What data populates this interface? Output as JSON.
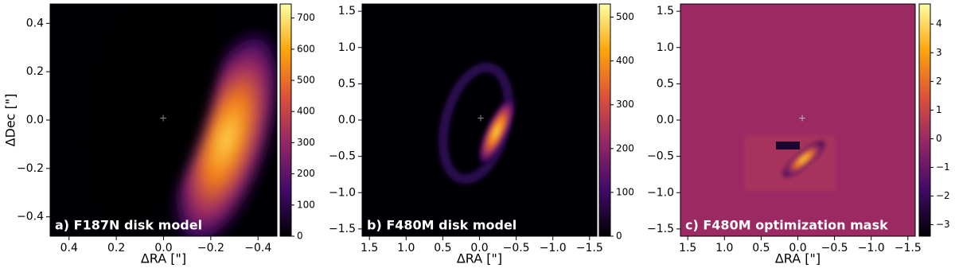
{
  "chart_data": [
    {
      "type": "image",
      "title": "a) F187N disk model",
      "xlabel": "ΔRA [\"]",
      "ylabel": "ΔDec [\"]",
      "colormap": "inferno",
      "xlim": [
        0.48,
        -0.48
      ],
      "xticks": [
        0.4,
        0.2,
        {
          "value": 0,
          "label": "0.0"
        },
        {
          "value": -0.2,
          "label": "−0.2"
        },
        {
          "value": -0.4,
          "label": "−0.4"
        }
      ],
      "ylim": [
        -0.48,
        0.48
      ],
      "yticks": [
        {
          "value": -0.4,
          "label": "−0.4"
        },
        {
          "value": -0.2,
          "label": "−0.2"
        },
        {
          "value": 0,
          "label": "0.0"
        },
        0.2,
        0.4
      ],
      "clim": [
        0,
        745
      ],
      "cticks": [
        0,
        100,
        200,
        300,
        400,
        500,
        600,
        700
      ]
    },
    {
      "type": "image",
      "title": "b) F480M disk model",
      "xlabel": "ΔRA [\"]",
      "colormap": "inferno",
      "xlim": [
        1.6,
        -1.6
      ],
      "xticks": [
        1.5,
        {
          "value": 1,
          "label": "1.0"
        },
        0.5,
        {
          "value": 0,
          "label": "0.0"
        },
        {
          "value": -0.5,
          "label": "−0.5"
        },
        {
          "value": -1,
          "label": "−1.0"
        },
        {
          "value": -1.5,
          "label": "−1.5"
        }
      ],
      "ylim": [
        -1.6,
        1.6
      ],
      "yticks": [
        {
          "value": -1.5,
          "label": "−1.5"
        },
        {
          "value": -1,
          "label": "−1.0"
        },
        {
          "value": -0.5,
          "label": "−0.5"
        },
        {
          "value": 0,
          "label": "0.0"
        },
        0.5,
        {
          "value": 1,
          "label": "1.0"
        },
        1.5
      ],
      "clim": [
        0,
        530
      ],
      "cticks": [
        0,
        100,
        200,
        300,
        400,
        500
      ]
    },
    {
      "type": "image",
      "title": "c) F480M optimization mask",
      "xlabel": "ΔRA [\"]",
      "colormap": "inferno",
      "xlim": [
        1.6,
        -1.6
      ],
      "xticks": [
        1.5,
        {
          "value": 1,
          "label": "1.0"
        },
        0.5,
        {
          "value": 0,
          "label": "0.0"
        },
        {
          "value": -0.5,
          "label": "−0.5"
        },
        {
          "value": -1,
          "label": "−1.0"
        },
        {
          "value": -1.5,
          "label": "−1.5"
        }
      ],
      "ylim": [
        -1.6,
        1.6
      ],
      "yticks": [
        {
          "value": -1.5,
          "label": "−1.5"
        },
        {
          "value": -1,
          "label": "−1.0"
        },
        {
          "value": -0.5,
          "label": "−0.5"
        },
        {
          "value": 0,
          "label": "0.0"
        },
        0.5,
        {
          "value": 1,
          "label": "1.0"
        },
        1.5
      ],
      "clim": [
        -3.4,
        4.7
      ],
      "cticks": [
        {
          "value": -3,
          "label": "−3"
        },
        {
          "value": -2,
          "label": "−2"
        },
        {
          "value": -1,
          "label": "−1"
        },
        0,
        1,
        2,
        3,
        4
      ]
    }
  ]
}
